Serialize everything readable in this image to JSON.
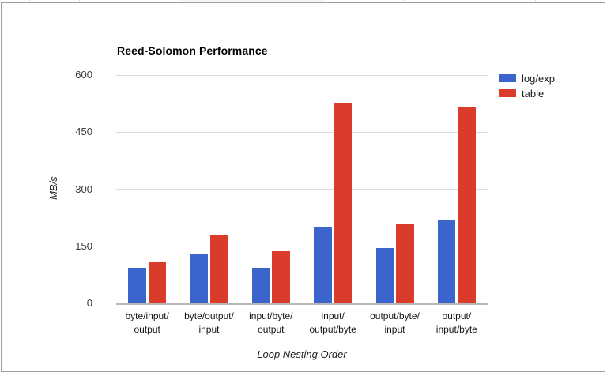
{
  "window": {
    "background": "#ffffff",
    "border_color": "#9e9e9e"
  },
  "chart_data": {
    "type": "bar",
    "title": "Reed-Solomon Performance",
    "xlabel": "Loop Nesting Order",
    "ylabel": "MB/s",
    "categories": [
      "byte/input/output",
      "byte/output/input",
      "input/byte/output",
      "input/output/byte",
      "output/byte/input",
      "output/input/byte"
    ],
    "category_lines": [
      [
        "byte/input/",
        "output"
      ],
      [
        "byte/output/",
        "input"
      ],
      [
        "input/byte/",
        "output"
      ],
      [
        "input/",
        "output/byte"
      ],
      [
        "output/byte/",
        "input"
      ],
      [
        "output/",
        "input/byte"
      ]
    ],
    "series": [
      {
        "name": "log/exp",
        "color": "#3c64cd",
        "values": [
          94,
          130,
          94,
          200,
          145,
          217
        ]
      },
      {
        "name": "table",
        "color": "#db3b2a",
        "values": [
          108,
          180,
          137,
          525,
          210,
          516
        ]
      }
    ],
    "ylim": [
      0,
      600
    ],
    "yticks": [
      0,
      150,
      300,
      450,
      600
    ],
    "grid": true,
    "legend_position": "top-right",
    "colors": {
      "gridline": "#dcdcdc",
      "baseline": "#b7b7b7",
      "tick_text": "#3c3c3c",
      "label_text": "#161616"
    }
  }
}
